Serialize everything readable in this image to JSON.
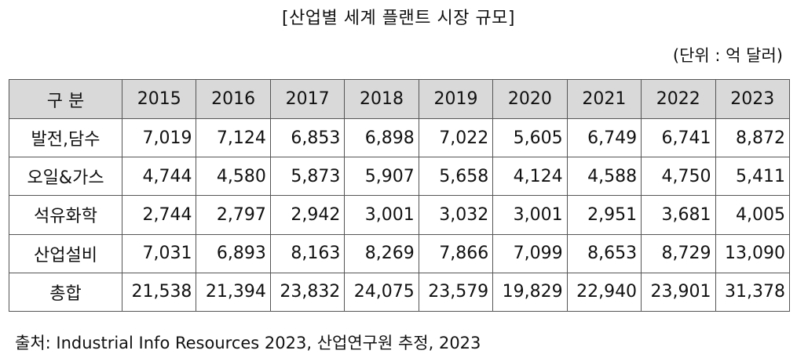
{
  "title": "[산업별 세계 플랜트 시장 규모]",
  "unit": "(단위 : 억 달러)",
  "table": {
    "columns": [
      "구 분",
      "2015",
      "2016",
      "2017",
      "2018",
      "2019",
      "2020",
      "2021",
      "2022",
      "2023"
    ],
    "rows": [
      [
        "발전,담수",
        "7,019",
        "7,124",
        "6,853",
        "6,898",
        "7,022",
        "5,605",
        "6,749",
        "6,741",
        "8,872"
      ],
      [
        "오일&가스",
        "4,744",
        "4,580",
        "5,873",
        "5,907",
        "5,658",
        "4,124",
        "4,588",
        "4,750",
        "5,411"
      ],
      [
        "석유화학",
        "2,744",
        "2,797",
        "2,942",
        "3,001",
        "3,032",
        "3,001",
        "2,951",
        "3,681",
        "4,005"
      ],
      [
        "산업설비",
        "7,031",
        "6,893",
        "8,163",
        "8,269",
        "7,866",
        "7,099",
        "8,653",
        "8,729",
        "13,090"
      ],
      [
        "총합",
        "21,538",
        "21,394",
        "23,832",
        "24,075",
        "23,579",
        "19,829",
        "22,940",
        "23,901",
        "31,378"
      ]
    ]
  },
  "source": "출처: Industrial Info Resources 2023, 산업연구원 추정, 2023",
  "colors": {
    "header_bg": "#d9d9d9",
    "border": "#555555"
  }
}
